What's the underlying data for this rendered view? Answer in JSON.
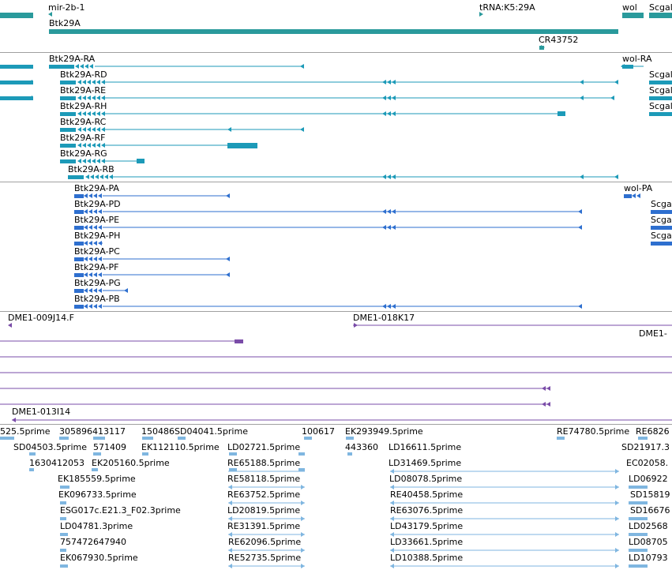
{
  "colors": {
    "gene": "#2a9a9c",
    "transcript": "#1c9ab8",
    "protein": "#2e6fcf",
    "clone": "#7a4ca8",
    "est": "#7fb6e0",
    "divider": "#a0a0a0"
  },
  "genes": {
    "labels": [
      "mir-2b-1",
      "tRNA:K5:29A",
      "wol",
      "Scgal",
      "Btk29A",
      "CR43752"
    ]
  },
  "transcripts": {
    "labels": [
      "Btk29A-RA",
      "Btk29A-RD",
      "Btk29A-RE",
      "Btk29A-RH",
      "Btk29A-RC",
      "Btk29A-RF",
      "Btk29A-RG",
      "Btk29A-RB",
      "wol-RA",
      "Scgal",
      "Scgal",
      "Scgal"
    ]
  },
  "proteins": {
    "labels": [
      "Btk29A-PA",
      "Btk29A-PD",
      "Btk29A-PE",
      "Btk29A-PH",
      "Btk29A-PC",
      "Btk29A-PF",
      "Btk29A-PG",
      "Btk29A-PB",
      "wol-PA",
      "Scgal",
      "Scgal",
      "Scgal"
    ]
  },
  "clones": {
    "labels": [
      "DME1-009J14.F",
      "DME1-018K17",
      "DME1-",
      "DME1-013I14"
    ]
  },
  "ests": {
    "labels": [
      "525.5prime",
      "305896413117",
      "150486SD04041.5prime",
      "100617",
      "EK293949.5prime",
      "RE74780.5prime",
      "RE6826",
      "SD04503.5prime",
      "571409",
      "EK112110.5prime",
      "LD02721.5prime",
      "443360",
      "LD16611.5prime",
      "SD21917.3",
      "1630412053",
      "EK205160.5prime",
      "RE65188.5prime",
      "LD31469.5prime",
      "EC02058.",
      "EK185559.5prime",
      "RE58118.5prime",
      "LD08078.5prime",
      "LD06922",
      "EK096733.5prime",
      "RE63752.5prime",
      "RE40458.5prime",
      "SD15819",
      "ESG017c.E21.3_F02.3prime",
      "LD20819.5prime",
      "RE63076.5prime",
      "SD16676",
      "LD04781.3prime",
      "RE31391.5prime",
      "LD43179.5prime",
      "LD02568",
      "757472647940",
      "RE62096.5prime",
      "LD33661.5prime",
      "LD08705",
      "EK067930.5prime",
      "RE52735.5prime",
      "LD10388.5prime",
      "LD10793"
    ]
  }
}
